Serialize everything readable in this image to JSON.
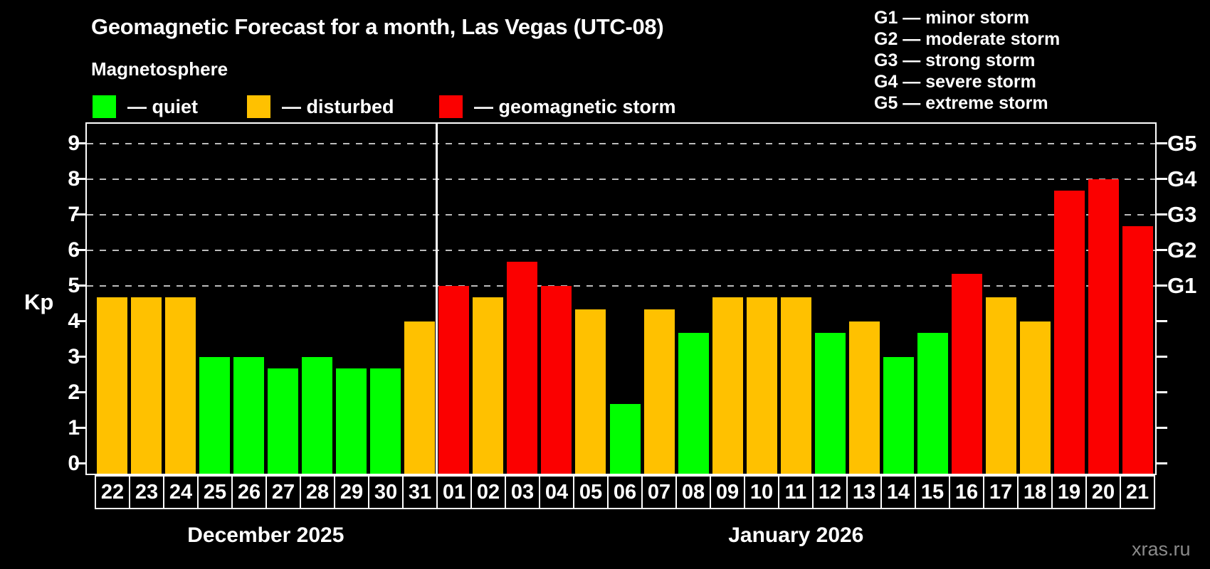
{
  "title": "Geomagnetic Forecast for a month, Las Vegas (UTC-08)",
  "subtitle": "Magnetosphere",
  "legend": {
    "quiet": {
      "label": "— quiet",
      "color": "#00ff00"
    },
    "disturbed": {
      "label": "— disturbed",
      "color": "#ffc100"
    },
    "storm": {
      "label": "— geomagnetic storm",
      "color": "#fb0000"
    }
  },
  "g_legend": [
    "G1 — minor storm",
    "G2 — moderate storm",
    "G3 — strong storm",
    "G4 — severe storm",
    "G5 — extreme storm"
  ],
  "watermark": "xras.ru",
  "chart_data": {
    "type": "bar",
    "title": "Geomagnetic Forecast for a month, Las Vegas (UTC-08)",
    "ylabel": "Kp",
    "ylim": [
      0,
      9
    ],
    "yticks": [
      0,
      1,
      2,
      3,
      4,
      5,
      6,
      7,
      8,
      9
    ],
    "gridlines_at": [
      5,
      6,
      7,
      8,
      9
    ],
    "grid": "dashed, only at storm levels Kp 5-9",
    "legend_position": "top",
    "right_axis_labels": [
      {
        "value": 5,
        "label": "G1"
      },
      {
        "value": 6,
        "label": "G2"
      },
      {
        "value": 7,
        "label": "G3"
      },
      {
        "value": 8,
        "label": "G4"
      },
      {
        "value": 9,
        "label": "G5"
      }
    ],
    "status_colors": {
      "quiet": "#00ff00",
      "disturbed": "#ffc100",
      "storm": "#fb0000"
    },
    "groups": [
      {
        "label": "December 2025",
        "categories": [
          "22",
          "23",
          "24",
          "25",
          "26",
          "27",
          "28",
          "29",
          "30",
          "31"
        ],
        "values": [
          4.67,
          4.67,
          4.67,
          3,
          3,
          2.67,
          3,
          2.67,
          2.67,
          4
        ],
        "status": [
          "disturbed",
          "disturbed",
          "disturbed",
          "quiet",
          "quiet",
          "quiet",
          "quiet",
          "quiet",
          "quiet",
          "disturbed"
        ]
      },
      {
        "label": "January 2026",
        "categories": [
          "01",
          "02",
          "03",
          "04",
          "05",
          "06",
          "07",
          "08",
          "09",
          "10",
          "11",
          "12",
          "13",
          "14",
          "15",
          "16",
          "17",
          "18",
          "19",
          "20",
          "21"
        ],
        "values": [
          5,
          4.67,
          5.67,
          5,
          4.33,
          1.67,
          4.33,
          3.67,
          4.67,
          4.67,
          4.67,
          3.67,
          4,
          3,
          3.67,
          5.33,
          4.67,
          4,
          7.67,
          8,
          6.67
        ],
        "status": [
          "storm",
          "disturbed",
          "storm",
          "storm",
          "disturbed",
          "quiet",
          "disturbed",
          "quiet",
          "disturbed",
          "disturbed",
          "disturbed",
          "quiet",
          "disturbed",
          "quiet",
          "quiet",
          "storm",
          "disturbed",
          "disturbed",
          "storm",
          "storm",
          "storm"
        ]
      }
    ]
  }
}
